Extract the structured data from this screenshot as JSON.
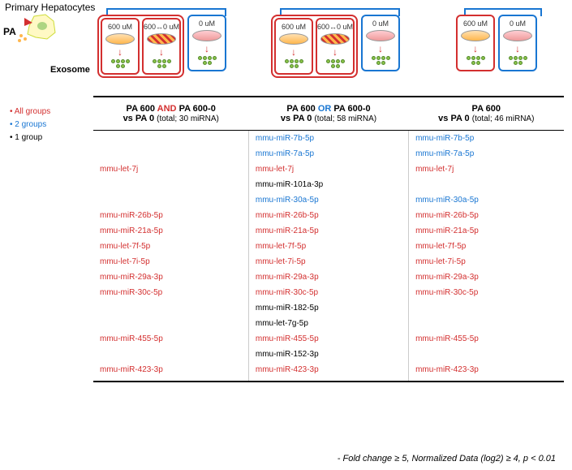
{
  "labels": {
    "primary": "Primary Hepatocytes",
    "pa": "PA",
    "exosome": "Exosome"
  },
  "dishes": {
    "d600": "600 uM",
    "d600_0": "600↔0 uM",
    "d0": "0 uM"
  },
  "legend": {
    "all": "• All groups",
    "two": "• 2 groups",
    "one": "• 1 group"
  },
  "headers": {
    "c1_a": "PA 600 ",
    "c1_and": "AND",
    "c1_b": " PA 600-0",
    "c1_sub_a": "vs PA 0 ",
    "c1_sub_b": "(total; 30 miRNA)",
    "c2_a": "PA 600 ",
    "c2_or": "OR",
    "c2_b": " PA 600-0",
    "c2_sub_a": "vs PA 0 ",
    "c2_sub_b": "(total; 58 miRNA)",
    "c3_a": "PA 600",
    "c3_sub_a": "vs PA 0 ",
    "c3_sub_b": "(total; 46 miRNA)"
  },
  "rows": [
    {
      "c1": "",
      "c1c": "",
      "c2": "mmu-miR-7b-5p",
      "c2c": "blue",
      "c3": "mmu-miR-7b-5p",
      "c3c": "blue"
    },
    {
      "c1": "",
      "c1c": "",
      "c2": "mmu-miR-7a-5p",
      "c2c": "blue",
      "c3": "mmu-miR-7a-5p",
      "c3c": "blue"
    },
    {
      "c1": "mmu-let-7j",
      "c1c": "red",
      "c2": "mmu-let-7j",
      "c2c": "red",
      "c3": "mmu-let-7j",
      "c3c": "red"
    },
    {
      "c1": "",
      "c1c": "",
      "c2": "mmu-miR-101a-3p",
      "c2c": "black",
      "c3": "",
      "c3c": ""
    },
    {
      "c1": "",
      "c1c": "",
      "c2": "mmu-miR-30a-5p",
      "c2c": "blue",
      "c3": "mmu-miR-30a-5p",
      "c3c": "blue"
    },
    {
      "c1": "mmu-miR-26b-5p",
      "c1c": "red",
      "c2": "mmu-miR-26b-5p",
      "c2c": "red",
      "c3": "mmu-miR-26b-5p",
      "c3c": "red"
    },
    {
      "c1": "mmu-miR-21a-5p",
      "c1c": "red",
      "c2": "mmu-miR-21a-5p",
      "c2c": "red",
      "c3": "mmu-miR-21a-5p",
      "c3c": "red"
    },
    {
      "c1": "mmu-let-7f-5p",
      "c1c": "red",
      "c2": "mmu-let-7f-5p",
      "c2c": "red",
      "c3": "mmu-let-7f-5p",
      "c3c": "red"
    },
    {
      "c1": "mmu-let-7i-5p",
      "c1c": "red",
      "c2": "mmu-let-7i-5p",
      "c2c": "red",
      "c3": "mmu-let-7i-5p",
      "c3c": "red"
    },
    {
      "c1": "mmu-miR-29a-3p",
      "c1c": "red",
      "c2": "mmu-miR-29a-3p",
      "c2c": "red",
      "c3": "mmu-miR-29a-3p",
      "c3c": "red"
    },
    {
      "c1": "mmu-miR-30c-5p",
      "c1c": "red",
      "c2": "mmu-miR-30c-5p",
      "c2c": "red",
      "c3": "mmu-miR-30c-5p",
      "c3c": "red"
    },
    {
      "c1": "",
      "c1c": "",
      "c2": "mmu-miR-182-5p",
      "c2c": "black",
      "c3": "",
      "c3c": ""
    },
    {
      "c1": "",
      "c1c": "",
      "c2": "mmu-let-7g-5p",
      "c2c": "black",
      "c3": "",
      "c3c": ""
    },
    {
      "c1": "mmu-miR-455-5p",
      "c1c": "red",
      "c2": "mmu-miR-455-5p",
      "c2c": "red",
      "c3": "mmu-miR-455-5p",
      "c3c": "red"
    },
    {
      "c1": "",
      "c1c": "",
      "c2": "mmu-miR-152-3p",
      "c2c": "black",
      "c3": "",
      "c3c": ""
    },
    {
      "c1": "mmu-miR-423-3p",
      "c1c": "red",
      "c2": "mmu-miR-423-3p",
      "c2c": "red",
      "c3": "mmu-miR-423-3p",
      "c3c": "red"
    }
  ],
  "footnote_a": "- Fold change ≥ 5, Normalized Data (log2) ≥ 4, ",
  "footnote_b": "p < 0.01",
  "colors": {
    "red": "#d32f2f",
    "blue": "#1976d2",
    "black": "#000",
    "green": "#8bc34a"
  }
}
